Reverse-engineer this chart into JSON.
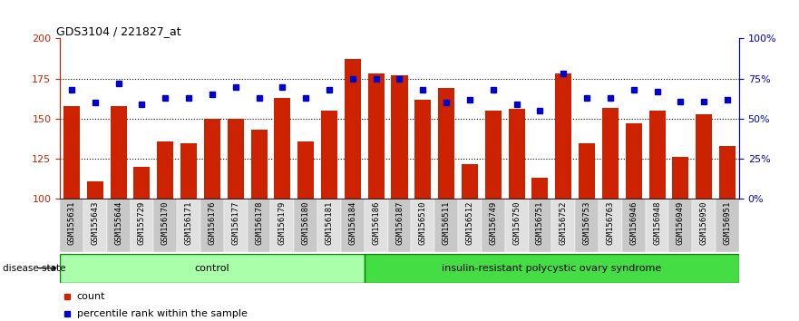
{
  "title": "GDS3104 / 221827_at",
  "categories": [
    "GSM155631",
    "GSM155643",
    "GSM155644",
    "GSM155729",
    "GSM156170",
    "GSM156171",
    "GSM156176",
    "GSM156177",
    "GSM156178",
    "GSM156179",
    "GSM156180",
    "GSM156181",
    "GSM156184",
    "GSM156186",
    "GSM156187",
    "GSM156510",
    "GSM156511",
    "GSM156512",
    "GSM156749",
    "GSM156750",
    "GSM156751",
    "GSM156752",
    "GSM156753",
    "GSM156763",
    "GSM156946",
    "GSM156948",
    "GSM156949",
    "GSM156950",
    "GSM156951"
  ],
  "bar_values": [
    158,
    111,
    158,
    120,
    136,
    135,
    150,
    150,
    143,
    163,
    136,
    155,
    187,
    178,
    177,
    162,
    169,
    122,
    155,
    156,
    113,
    178,
    135,
    157,
    147,
    155,
    126,
    153,
    133
  ],
  "percentile_values": [
    168,
    160,
    172,
    159,
    163,
    163,
    165,
    170,
    163,
    170,
    163,
    168,
    175,
    175,
    175,
    168,
    160,
    162,
    168,
    159,
    155,
    178,
    163,
    163,
    168,
    167,
    161,
    161,
    162
  ],
  "control_count": 13,
  "group_labels": [
    "control",
    "insulin-resistant polycystic ovary syndrome"
  ],
  "bar_color": "#cc2200",
  "dot_color": "#0000cc",
  "ylim_left": [
    100,
    200
  ],
  "ylim_right": [
    0,
    100
  ],
  "yticks_left": [
    100,
    125,
    150,
    175,
    200
  ],
  "yticks_right": [
    0,
    25,
    50,
    75,
    100
  ],
  "ytick_labels_right": [
    "0%",
    "25%",
    "50%",
    "75%",
    "100%"
  ],
  "grid_values": [
    125,
    150,
    175
  ],
  "disease_state_label": "disease state",
  "legend_count_label": "count",
  "legend_percentile_label": "percentile rank within the sample",
  "control_color": "#aaffaa",
  "disease_color": "#44dd44",
  "cell_color_odd": "#c8c8c8",
  "cell_color_even": "#e0e0e0"
}
